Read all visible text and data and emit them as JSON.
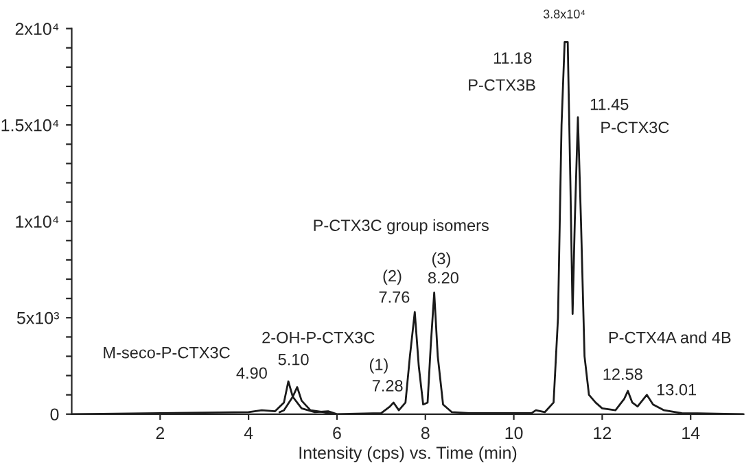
{
  "chart_data": {
    "type": "line",
    "xlabel": "Intensity (cps) vs. Time (min)",
    "xlim": [
      0,
      15.2
    ],
    "xticks": [
      2,
      4,
      6,
      8,
      10,
      12,
      14
    ],
    "ylim": [
      0,
      20000
    ],
    "yticks": [
      {
        "value": 0,
        "label": "0"
      },
      {
        "value": 1000,
        "label": null
      },
      {
        "value": 2000,
        "label": null
      },
      {
        "value": 3000,
        "label": null
      },
      {
        "value": 4000,
        "label": null
      },
      {
        "value": 5000,
        "label": "5x10³"
      },
      {
        "value": 6000,
        "label": null
      },
      {
        "value": 7000,
        "label": null
      },
      {
        "value": 8000,
        "label": null
      },
      {
        "value": 9000,
        "label": null
      },
      {
        "value": 10000,
        "label": "1x10⁴"
      },
      {
        "value": 11000,
        "label": null
      },
      {
        "value": 12000,
        "label": null
      },
      {
        "value": 13000,
        "label": null
      },
      {
        "value": 14000,
        "label": null
      },
      {
        "value": 15000,
        "label": "1.5x10⁴"
      },
      {
        "value": 16000,
        "label": null
      },
      {
        "value": 17000,
        "label": null
      },
      {
        "value": 18000,
        "label": null
      },
      {
        "value": 19000,
        "label": null
      },
      {
        "value": 20000,
        "label": "2x10⁴"
      }
    ],
    "grid": false,
    "legend": false,
    "marker": "none",
    "line_style": "solid",
    "series": [
      {
        "color": "#1a1a1a",
        "x": [
          0,
          4.0,
          4.3,
          4.6,
          4.8,
          4.9,
          5.0,
          5.2,
          5.5,
          5.8,
          6.0,
          7.0,
          7.2,
          7.28,
          7.4,
          7.55,
          7.65,
          7.76,
          7.85,
          7.95,
          8.05,
          8.12,
          8.2,
          8.28,
          8.4,
          8.6,
          9.0,
          10.4,
          10.5,
          10.7,
          10.9,
          11.0,
          11.08,
          11.15,
          11.22,
          11.28,
          11.33,
          11.38,
          11.45,
          11.52,
          11.6,
          11.7,
          11.85,
          12.0,
          12.3,
          12.5,
          12.58,
          12.68,
          12.8,
          13.01,
          13.15,
          13.4,
          13.8,
          15.2
        ],
        "values": [
          0,
          100,
          200,
          150,
          600,
          1700,
          900,
          300,
          100,
          150,
          0,
          50,
          400,
          600,
          200,
          600,
          3000,
          5300,
          2500,
          500,
          600,
          3500,
          6300,
          3000,
          500,
          100,
          50,
          50,
          200,
          100,
          600,
          5000,
          15000,
          19300,
          19300,
          12000,
          5200,
          10000,
          15400,
          10000,
          3000,
          1000,
          600,
          300,
          200,
          800,
          1200,
          600,
          400,
          1000,
          500,
          200,
          50,
          0
        ]
      },
      {
        "color": "#1a1a1a",
        "x": [
          4.7,
          4.8,
          5.0,
          5.1,
          5.2,
          5.4,
          5.7,
          5.9
        ],
        "values": [
          100,
          200,
          900,
          1400,
          700,
          200,
          100,
          0
        ]
      }
    ],
    "annotations": [
      "3.8x10⁴",
      "11.18",
      "P-CTX3B",
      "11.45",
      "P-CTX3C",
      "P-CTX3C group isomers",
      "(3)",
      "8.20",
      "(2)",
      "7.76",
      "(1)",
      "7.28",
      "P-CTX4A and 4B",
      "12.58",
      "13.01",
      "2-OH-P-CTX3C",
      "M-seco-P-CTX3C",
      "4.90",
      "5.10"
    ]
  }
}
